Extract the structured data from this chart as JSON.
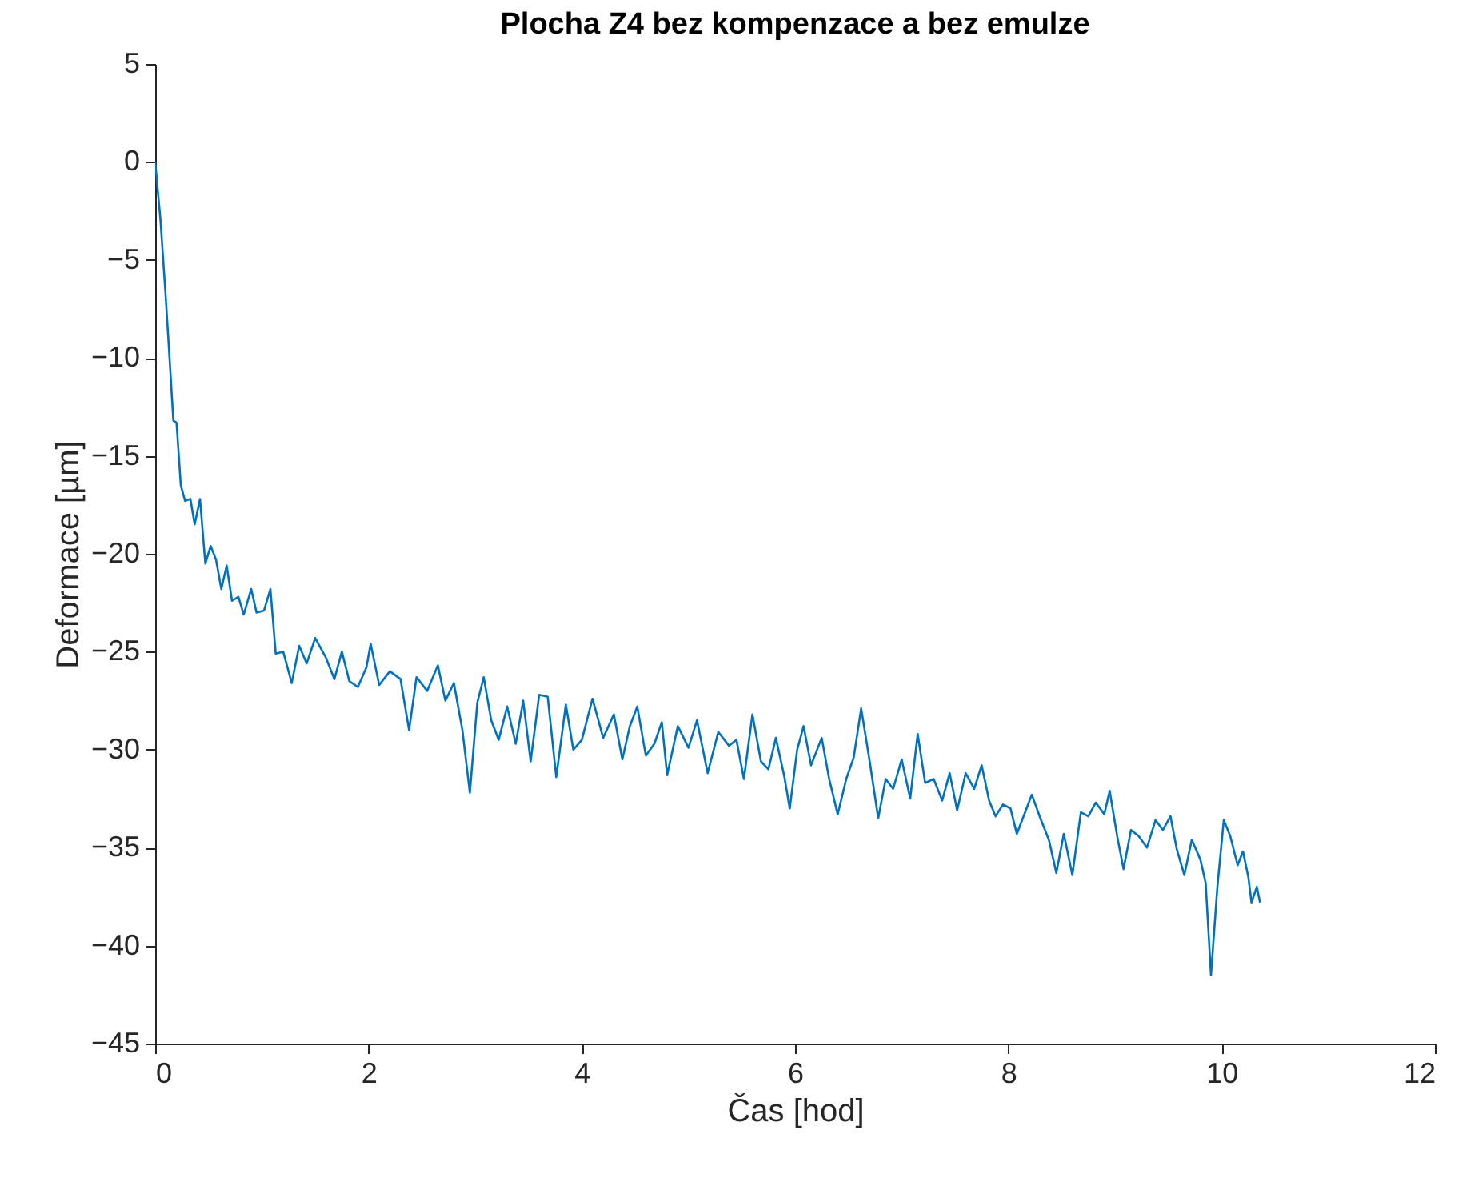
{
  "chart_data": {
    "type": "line",
    "title": "Plocha Z4 bez kompenzace a bez emulze",
    "xlabel": "Čas [hod]",
    "ylabel": "Deformace [µm]",
    "xlim": [
      0,
      12
    ],
    "xticks": [
      0,
      2,
      4,
      6,
      8,
      10,
      12
    ],
    "ylim": [
      -45,
      5
    ],
    "yticks": [
      -45,
      -40,
      -35,
      -30,
      -25,
      -20,
      -15,
      -10,
      -5,
      0,
      5
    ],
    "grid": false,
    "series": [
      {
        "color": "#0072bd",
        "x": [
          0,
          0.05,
          0.1,
          0.14,
          0.17,
          0.2,
          0.24,
          0.28,
          0.33,
          0.37,
          0.42,
          0.47,
          0.52,
          0.57,
          0.62,
          0.67,
          0.72,
          0.78,
          0.83,
          0.9,
          0.95,
          1.02,
          1.08,
          1.13,
          1.2,
          1.28,
          1.35,
          1.42,
          1.5,
          1.6,
          1.68,
          1.75,
          1.82,
          1.9,
          1.98,
          2.02,
          2.1,
          2.2,
          2.3,
          2.38,
          2.45,
          2.55,
          2.65,
          2.72,
          2.8,
          2.88,
          2.95,
          3.02,
          3.08,
          3.15,
          3.22,
          3.3,
          3.38,
          3.45,
          3.52,
          3.6,
          3.68,
          3.76,
          3.85,
          3.92,
          4.0,
          4.1,
          4.2,
          4.3,
          4.38,
          4.45,
          4.52,
          4.6,
          4.68,
          4.75,
          4.8,
          4.9,
          5.0,
          5.08,
          5.18,
          5.28,
          5.38,
          5.45,
          5.52,
          5.6,
          5.68,
          5.75,
          5.82,
          5.9,
          5.95,
          6.02,
          6.08,
          6.15,
          6.25,
          6.32,
          6.4,
          6.48,
          6.55,
          6.62,
          6.7,
          6.78,
          6.85,
          6.92,
          7.0,
          7.08,
          7.15,
          7.22,
          7.3,
          7.38,
          7.45,
          7.52,
          7.6,
          7.68,
          7.75,
          7.82,
          7.88,
          7.95,
          8.02,
          8.08,
          8.15,
          8.22,
          8.3,
          8.38,
          8.45,
          8.52,
          8.6,
          8.68,
          8.75,
          8.82,
          8.9,
          8.95,
          9.02,
          9.08,
          9.15,
          9.22,
          9.3,
          9.38,
          9.45,
          9.52,
          9.58,
          9.65,
          9.72,
          9.8,
          9.85,
          9.9,
          9.96,
          10.02,
          10.08,
          10.15,
          10.2,
          10.25,
          10.28,
          10.33,
          10.36
        ],
        "values": [
          0,
          -3,
          -7,
          -10.5,
          -13.2,
          -13.3,
          -16.5,
          -17.3,
          -17.2,
          -18.5,
          -17.2,
          -20.5,
          -19.6,
          -20.3,
          -21.8,
          -20.6,
          -22.4,
          -22.2,
          -23.1,
          -21.8,
          -23,
          -22.9,
          -21.8,
          -25.1,
          -25,
          -26.6,
          -24.7,
          -25.6,
          -24.3,
          -25.3,
          -26.4,
          -25,
          -26.5,
          -26.8,
          -25.8,
          -24.6,
          -26.7,
          -26,
          -26.4,
          -29,
          -26.3,
          -27,
          -25.7,
          -27.5,
          -26.6,
          -29,
          -32.2,
          -27.6,
          -26.3,
          -28.5,
          -29.5,
          -27.8,
          -29.7,
          -27.5,
          -30.6,
          -27.2,
          -27.3,
          -31.4,
          -27.7,
          -30,
          -29.5,
          -27.4,
          -29.4,
          -28.2,
          -30.5,
          -28.8,
          -27.8,
          -30.3,
          -29.7,
          -28.6,
          -31.3,
          -28.8,
          -29.9,
          -28.5,
          -31.2,
          -29.1,
          -29.8,
          -29.5,
          -31.5,
          -28.2,
          -30.6,
          -31,
          -29.4,
          -31.4,
          -33,
          -30,
          -28.8,
          -30.8,
          -29.4,
          -31.5,
          -33.3,
          -31.5,
          -30.4,
          -27.9,
          -30.6,
          -33.5,
          -31.5,
          -32,
          -30.5,
          -32.5,
          -29.2,
          -31.7,
          -31.5,
          -32.6,
          -31.2,
          -33.1,
          -31.2,
          -32,
          -30.8,
          -32.6,
          -33.4,
          -32.8,
          -33,
          -34.3,
          -33.3,
          -32.3,
          -33.5,
          -34.6,
          -36.3,
          -34.3,
          -36.4,
          -33.2,
          -33.4,
          -32.7,
          -33.3,
          -32.1,
          -34.4,
          -36.1,
          -34.1,
          -34.4,
          -35,
          -33.6,
          -34.1,
          -33.4,
          -35.1,
          -36.4,
          -34.6,
          -35.6,
          -36.8,
          -41.5,
          -37,
          -33.6,
          -34.4,
          -35.9,
          -35.2,
          -36.5,
          -37.8,
          -37,
          -37.8
        ]
      }
    ]
  }
}
